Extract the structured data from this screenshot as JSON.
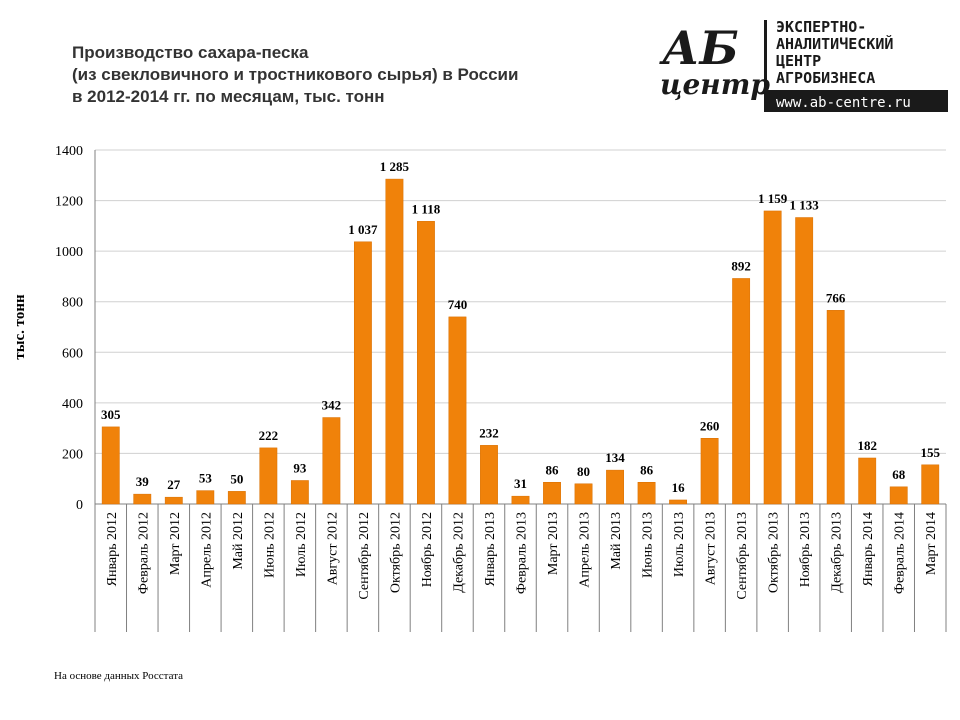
{
  "title": {
    "line1": "Производство сахара-песка",
    "line2": "(из свекловичного и тростникового сырья) в России",
    "line3": "в 2012-2014 гг. по месяцам, тыс. тонн"
  },
  "logo": {
    "mark_top": "АБ",
    "mark_bottom": "центр",
    "line1": "ЭКСПЕРТНО-",
    "line2": "АНАЛИТИЧЕСКИЙ",
    "line3": "ЦЕНТР",
    "line4": "АГРОБИЗНЕСА",
    "url": "www.ab-centre.ru"
  },
  "source_note": "На основе данных  Росстата",
  "colors": {
    "bar": "#F0820A",
    "bar_edge": "#D86F00",
    "grid": "#D0D0D0",
    "axis": "#808080",
    "logo_dark": "#1A1A1A"
  },
  "chart_data": {
    "type": "bar",
    "title": "Производство сахара-песка (из свекловичного и тростникового сырья) в России в 2012-2014 гг. по месяцам, тыс. тонн",
    "ylabel": "тыс. тонн",
    "xlabel": "",
    "ylim": [
      0,
      1400
    ],
    "yticks": [
      "0",
      "200",
      "400",
      "600",
      "800",
      "1000",
      "1200",
      "1400"
    ],
    "grid": true,
    "legend": "none",
    "categories": [
      "Январь 2012",
      "Февраль 2012",
      "Март 2012",
      "Апрель 2012",
      "Май 2012",
      "Июнь 2012",
      "Июль 2012",
      "Август 2012",
      "Сентябрь 2012",
      "Октябрь 2012",
      "Ноябрь 2012",
      "Декабрь 2012",
      "Январь 2013",
      "Февраль 2013",
      "Март 2013",
      "Апрель 2013",
      "Май 2013",
      "Июнь 2013",
      "Июль 2013",
      "Август 2013",
      "Сентябрь 2013",
      "Октябрь 2013",
      "Ноябрь 2013",
      "Декабрь 2013",
      "Январь 2014",
      "Февраль 2014",
      "Март 2014"
    ],
    "values": [
      305,
      39,
      27,
      53,
      50,
      222,
      93,
      342,
      1037,
      1285,
      1118,
      740,
      232,
      31,
      86,
      80,
      134,
      86,
      16,
      260,
      892,
      1159,
      1133,
      766,
      182,
      68,
      155
    ],
    "labels": [
      "305",
      "39",
      "27",
      "53",
      "50",
      "222",
      "93",
      "342",
      "1 037",
      "1 285",
      "1 118",
      "740",
      "232",
      "31",
      "86",
      "80",
      "134",
      "86",
      "16",
      "260",
      "892",
      "1 159",
      "1 133",
      "766",
      "182",
      "68",
      "155"
    ]
  }
}
